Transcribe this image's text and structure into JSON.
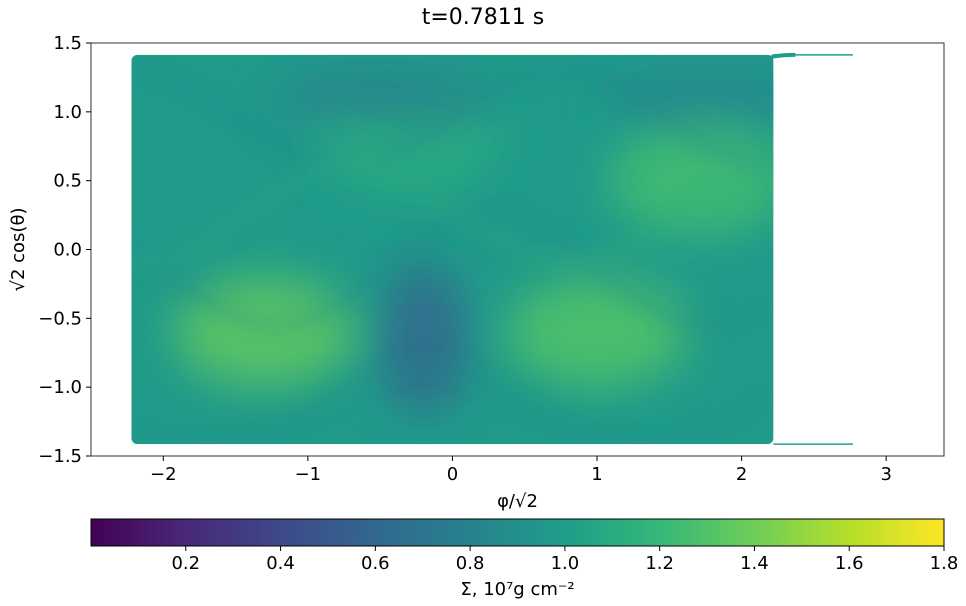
{
  "chart_data": {
    "type": "heatmap",
    "title": "t=0.7811 s",
    "xlabel": "φ/√2",
    "ylabel": "√2 cos(θ)",
    "xlim": [
      -2.5,
      3.4
    ],
    "ylim": [
      -1.5,
      1.5
    ],
    "x_ticks": [
      -2,
      -1,
      0,
      1,
      2,
      3
    ],
    "y_ticks": [
      1.5,
      1.0,
      0.5,
      0.0,
      -0.5,
      -1.0,
      -1.5
    ],
    "x_tick_labels": [
      "−2",
      "−1",
      "0",
      "1",
      "2",
      "3"
    ],
    "y_tick_labels": [
      "1.5",
      "1.0",
      "0.5",
      "0.0",
      "−0.5",
      "−1.0",
      "−1.5"
    ],
    "data_extent": {
      "x": [
        -2.22,
        2.22
      ],
      "y": [
        -1.414,
        1.414
      ]
    },
    "colormap": "viridis",
    "features": [
      {
        "kind": "low-density vortex",
        "x": -0.2,
        "y": -0.65,
        "value": 0.6
      },
      {
        "kind": "high-density band",
        "x": -1.3,
        "y": -0.6,
        "value": 1.35
      },
      {
        "kind": "high-density band",
        "x": 1.0,
        "y": -0.6,
        "value": 1.3
      },
      {
        "kind": "high-density band",
        "x": 1.7,
        "y": 0.5,
        "value": 1.25
      },
      {
        "kind": "high-density band",
        "x": -0.3,
        "y": 0.8,
        "value": 1.1
      },
      {
        "kind": "low-density streak",
        "x": -0.5,
        "y": 1.1,
        "value": 0.75
      },
      {
        "kind": "low-density streak",
        "x": 1.8,
        "y": 1.1,
        "value": 0.8
      }
    ],
    "colorbar": {
      "label": "Σ, 10⁷g cm⁻²",
      "range": [
        0.0,
        1.8
      ],
      "ticks": [
        0.2,
        0.4,
        0.6,
        0.8,
        1.0,
        1.2,
        1.4,
        1.6,
        1.8
      ],
      "tick_labels": [
        "0.2",
        "0.4",
        "0.6",
        "0.8",
        "1.0",
        "1.2",
        "1.4",
        "1.6",
        "1.8"
      ]
    }
  },
  "colors": {
    "viridis": [
      "#440154",
      "#482878",
      "#3e4989",
      "#31688e",
      "#26828e",
      "#1f9e89",
      "#35b779",
      "#6ece58",
      "#b5de2b",
      "#fde725"
    ]
  }
}
